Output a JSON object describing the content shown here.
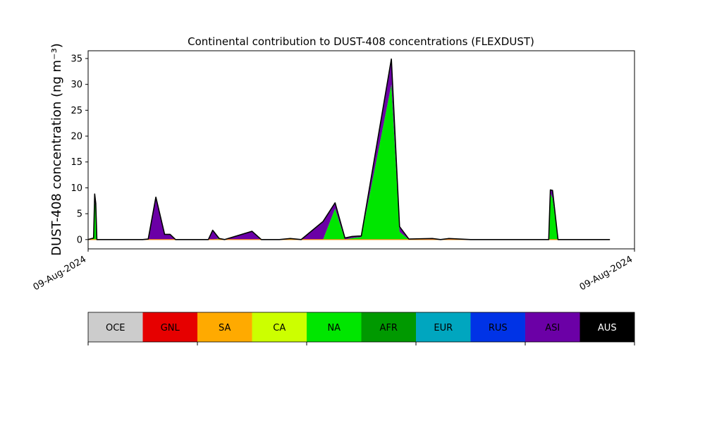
{
  "chart_data": {
    "type": "area",
    "title": "Continental contribution to DUST-408 concentrations (FLEXDUST)",
    "ylabel": "DUST-408 concentration (ng m⁻³)",
    "xlabel": "",
    "x_tick_labels": [
      "09-Aug-2024",
      "09-Aug-2024"
    ],
    "y_ticks": [
      0,
      5,
      10,
      15,
      20,
      25,
      30,
      35
    ],
    "ylim": [
      -1.8,
      36.5
    ],
    "xlim": [
      0,
      100
    ],
    "stacked": true,
    "grid": false,
    "legend_position": "bottom colorbar",
    "x": [
      0,
      1,
      1.2,
      1.4,
      1.6,
      2,
      3,
      10,
      11,
      12.4,
      14,
      15,
      16,
      17.5,
      19,
      22,
      22.8,
      24,
      25,
      30,
      31.7,
      33,
      35,
      36,
      37,
      39,
      43,
      45.2,
      47,
      48.3,
      50,
      55.5,
      57,
      58.7,
      63,
      64.5,
      66,
      70,
      71,
      73,
      75,
      76,
      77.5,
      78,
      78.5,
      79.2,
      79.5,
      80,
      81,
      84,
      84.3,
      84.6,
      85,
      86,
      95.5
    ],
    "series": [
      {
        "name": "OCE",
        "values": [
          0,
          0,
          0,
          0,
          0,
          0,
          0,
          0,
          0,
          0,
          0,
          0,
          0,
          0,
          0,
          0,
          0,
          0,
          0,
          0,
          0,
          0,
          0,
          0,
          0,
          0,
          0,
          0,
          0,
          0,
          0,
          0,
          0,
          0,
          0,
          0,
          0,
          0,
          0,
          0,
          0,
          0,
          0,
          0,
          0,
          0,
          0,
          0,
          0,
          0,
          0,
          0,
          0,
          0,
          0
        ]
      },
      {
        "name": "GNL",
        "values": [
          0,
          0,
          0,
          0,
          0,
          0,
          0,
          0,
          0,
          0,
          0,
          0,
          0,
          0,
          0,
          0,
          0,
          0,
          0,
          0,
          0,
          0,
          0,
          0,
          0,
          0,
          0,
          0,
          0,
          0,
          0,
          0,
          0,
          0,
          0,
          0,
          0,
          0,
          0,
          0,
          0,
          0,
          0,
          0,
          0,
          0,
          0,
          0,
          0,
          0,
          0,
          0,
          0,
          0,
          0
        ]
      },
      {
        "name": "SA",
        "values": [
          0,
          0,
          0,
          0,
          0,
          0,
          0,
          0,
          0,
          0,
          0,
          0,
          0,
          0,
          0,
          0,
          0,
          0,
          0,
          0,
          0,
          0,
          0,
          0,
          0,
          0,
          0,
          0,
          0,
          0,
          0,
          0,
          0,
          0,
          0,
          0,
          0,
          0,
          0,
          0,
          0,
          0,
          0,
          0,
          0,
          0,
          0,
          0,
          0,
          0,
          0,
          0,
          0,
          0,
          0
        ]
      },
      {
        "name": "CA",
        "values": [
          0,
          0,
          0,
          0,
          0,
          0,
          0,
          0,
          0,
          0,
          0,
          0,
          0,
          0,
          0,
          0,
          0,
          0,
          0,
          0,
          0,
          0,
          0,
          0,
          0,
          0,
          0,
          0,
          0,
          0,
          0,
          0,
          0,
          0,
          0,
          0,
          0,
          0,
          0,
          0,
          0,
          0,
          0,
          0,
          0,
          0,
          0,
          0,
          0,
          0,
          0,
          0,
          0,
          0,
          0
        ]
      },
      {
        "name": "NA",
        "values": [
          0,
          0.3,
          7.5,
          6,
          0,
          0,
          0,
          0,
          0,
          0,
          0,
          0,
          0,
          0,
          0,
          0,
          0,
          0.2,
          0,
          0,
          0,
          0,
          0,
          0.1,
          0.2,
          0,
          0,
          6,
          0,
          0.3,
          0.5,
          30,
          1.5,
          0,
          0,
          0,
          0,
          0,
          0,
          0,
          0,
          0,
          0,
          0,
          0,
          0,
          0,
          0,
          0,
          0,
          0,
          9,
          8,
          0,
          0
        ]
      },
      {
        "name": "AFR",
        "values": [
          0,
          0,
          0,
          0,
          0,
          0,
          0,
          0,
          0,
          0,
          0,
          0,
          0,
          0,
          0,
          0,
          0,
          0,
          0,
          0,
          0,
          0,
          0,
          0,
          0,
          0,
          0,
          0,
          0,
          0,
          0,
          0,
          0,
          0,
          0,
          0,
          0,
          0,
          0,
          0,
          0,
          0,
          0,
          0,
          0,
          0,
          0,
          0,
          0,
          0,
          0,
          0,
          0,
          0,
          0
        ]
      },
      {
        "name": "EUR",
        "values": [
          0,
          0,
          0,
          0,
          0,
          0,
          0,
          0,
          0,
          0,
          0,
          0,
          0,
          0,
          0,
          0,
          0,
          0,
          0,
          0,
          0,
          0,
          0,
          0,
          0,
          0,
          0,
          0,
          0,
          0,
          0,
          0,
          0,
          0,
          0,
          0,
          0,
          0,
          0,
          0,
          0,
          0,
          0,
          0,
          0,
          0,
          0,
          0,
          0,
          0,
          0,
          0,
          0,
          0,
          0
        ]
      },
      {
        "name": "RUS",
        "values": [
          0,
          0,
          0,
          0,
          0,
          0,
          0,
          0,
          0,
          0,
          0,
          0,
          0,
          0,
          0,
          0,
          0,
          0,
          0,
          0,
          0,
          0,
          0,
          0,
          0,
          0,
          0,
          0,
          0,
          0,
          0,
          0,
          0,
          0,
          0,
          0,
          0,
          0,
          0,
          0,
          0,
          0,
          0,
          0,
          0,
          0,
          0,
          0,
          0,
          0,
          0,
          0,
          0,
          0,
          0
        ]
      },
      {
        "name": "ASI",
        "values": [
          0,
          0,
          1.3,
          1,
          0,
          0,
          0,
          0,
          0.1,
          8.2,
          1,
          1,
          0,
          0,
          0,
          0,
          1.8,
          0,
          0,
          1.6,
          0,
          0,
          0,
          0,
          0,
          0,
          3.5,
          1.1,
          0.3,
          0.3,
          0.2,
          4.9,
          1,
          0.1,
          0.2,
          0,
          0.2,
          0,
          0,
          0,
          0,
          0,
          0,
          0,
          0,
          0,
          0,
          0,
          0,
          0,
          0,
          0.6,
          1.5,
          0,
          0
        ]
      },
      {
        "name": "AUS",
        "values": [
          0,
          0,
          0,
          0,
          0,
          0,
          0,
          0,
          0,
          0,
          0,
          0,
          0,
          0,
          0,
          0,
          0,
          0,
          0,
          0,
          0,
          0,
          0,
          0,
          0,
          0,
          0,
          0,
          0,
          0,
          0,
          0,
          0,
          0,
          0,
          0,
          0,
          0,
          0,
          0,
          0,
          0,
          0,
          0,
          0,
          0,
          0,
          0,
          0,
          0,
          0,
          0,
          0,
          0,
          0
        ]
      }
    ],
    "legend": {
      "labels": [
        "OCE",
        "GNL",
        "SA",
        "CA",
        "NA",
        "AFR",
        "EUR",
        "RUS",
        "ASI",
        "AUS"
      ],
      "colors": [
        "#cccccc",
        "#e60000",
        "#ffaa00",
        "#ccff00",
        "#00e600",
        "#009900",
        "#00a6bf",
        "#0033e6",
        "#6b00a6",
        "#000000"
      ],
      "label_colors": [
        "#000000",
        "#000000",
        "#000000",
        "#000000",
        "#000000",
        "#000000",
        "#000000",
        "#000000",
        "#000000",
        "#ffffff"
      ]
    }
  }
}
